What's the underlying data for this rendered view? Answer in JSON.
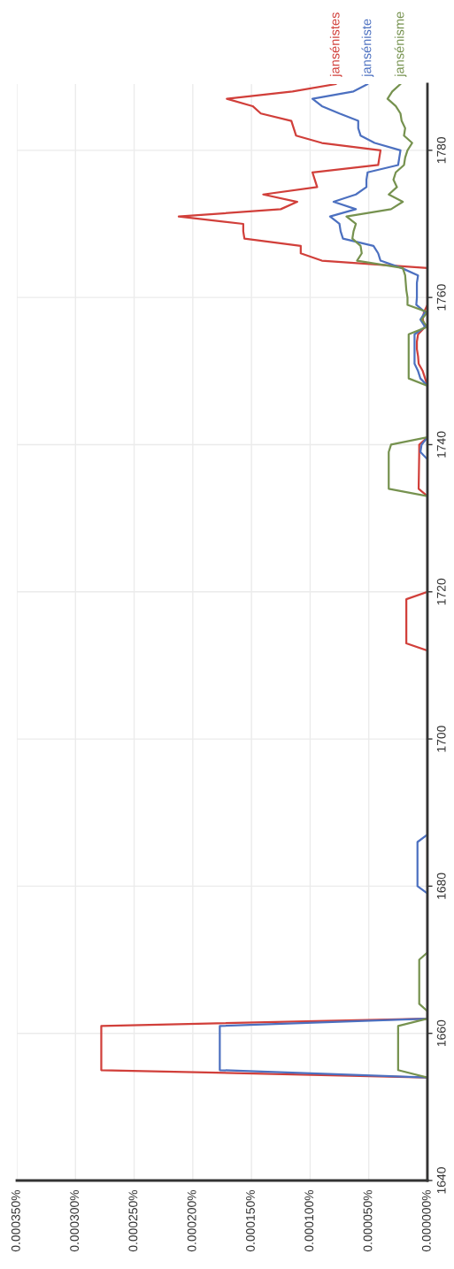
{
  "chart_data": {
    "type": "line",
    "ylim": [
      1640,
      1789
    ],
    "yticks": [
      1640,
      1660,
      1680,
      1700,
      1720,
      1740,
      1760,
      1780
    ],
    "xlim": [
      0.00035,
      0
    ],
    "xticks": [
      {
        "value": 0,
        "label": "0.000000%"
      },
      {
        "value": 5e-05,
        "label": "0.000050%"
      },
      {
        "value": 0.0001,
        "label": "0.000100%"
      },
      {
        "value": 0.00015,
        "label": "0.000150%"
      },
      {
        "value": 0.0002,
        "label": "0.000200%"
      },
      {
        "value": 0.00025,
        "label": "0.000250%"
      },
      {
        "value": 0.0003,
        "label": "0.000300%"
      },
      {
        "value": 0.00035,
        "label": "0.000350%"
      }
    ],
    "grid": true,
    "series": [
      {
        "name": "jansénistes",
        "color": "#d13f3a",
        "values": [
          1640,
          1654,
          1655,
          1661,
          1662,
          1712,
          1713,
          1719,
          1720,
          1733,
          1734,
          1739,
          1740,
          1741,
          1748,
          1749,
          1750,
          1751,
          1752,
          1753,
          1754,
          1755,
          1756,
          1757,
          1758,
          1759,
          1764,
          1765,
          1766,
          1767,
          1768,
          1769,
          1770,
          1771,
          1772,
          1773,
          1774,
          1775,
          1776,
          1777,
          1778,
          1779,
          1780,
          1781,
          1782,
          1783,
          1784,
          1785,
          1786,
          1787,
          1788,
          1789
        ],
        "x": [
          0,
          0,
          0.000278,
          0.000278,
          0,
          0,
          1.8e-05,
          1.8e-05,
          0,
          0,
          7.5e-06,
          7e-06,
          7e-06,
          0,
          0,
          2e-06,
          4e-06,
          7.5e-06,
          8e-06,
          9e-06,
          9e-06,
          8e-06,
          2e-06,
          4e-06,
          3e-06,
          0,
          0,
          9e-05,
          0.000108,
          0.000108,
          0.000156,
          0.000157,
          0.000157,
          0.000212,
          0.000125,
          0.000111,
          0.00014,
          9.4e-05,
          9.6e-05,
          9.8e-05,
          4.2e-05,
          4.1e-05,
          4e-05,
          9e-05,
          0.000112,
          0.000114,
          0.000116,
          0.000142,
          0.000149,
          0.000171,
          0.000115,
          7.8e-05
        ]
      },
      {
        "name": "janséniste",
        "color": "#4c70c0",
        "values": [
          1640,
          1654,
          1655,
          1661,
          1662,
          1679,
          1680,
          1686,
          1687,
          1738,
          1739,
          1740,
          1741,
          1748,
          1749,
          1750,
          1751,
          1752,
          1753,
          1754,
          1755,
          1756,
          1757,
          1758,
          1759,
          1760,
          1761,
          1762,
          1763,
          1764,
          1765,
          1766,
          1767,
          1768,
          1769,
          1770,
          1771,
          1772,
          1773,
          1774,
          1775,
          1776,
          1777,
          1778,
          1779,
          1780,
          1781,
          1782,
          1783,
          1784,
          1785,
          1786,
          1787,
          1788,
          1789
        ],
        "x": [
          0,
          0,
          0.000177,
          0.000177,
          0,
          0,
          8.5e-06,
          8.5e-06,
          0,
          0,
          6e-06,
          5e-06,
          0,
          0,
          6e-06,
          8e-06,
          1.1e-05,
          1.1e-05,
          1.1e-05,
          1.1e-05,
          1.1e-05,
          2e-06,
          6e-06,
          2e-06,
          9.5e-06,
          9e-06,
          9e-06,
          9e-06,
          8e-06,
          2.2e-05,
          4e-05,
          4.2e-05,
          4.6e-05,
          7.2e-05,
          7.4e-05,
          7.5e-05,
          8.3e-05,
          6.1e-05,
          8e-05,
          6.1e-05,
          5.2e-05,
          5.2e-05,
          5.1e-05,
          2.5e-05,
          2.4e-05,
          2.3e-05,
          4.5e-05,
          5.7e-05,
          5.9e-05,
          5.9e-05,
          7.5e-05,
          9e-05,
          9.8e-05,
          6.3e-05,
          5.1e-05
        ]
      },
      {
        "name": "jansénisme",
        "color": "#76924f",
        "values": [
          1640,
          1654,
          1655,
          1661,
          1662,
          1663,
          1664,
          1670,
          1671,
          1733,
          1734,
          1739,
          1740,
          1741,
          1748,
          1749,
          1755,
          1756,
          1757,
          1758,
          1759,
          1760,
          1761,
          1762,
          1763,
          1764,
          1765,
          1766,
          1767,
          1768,
          1769,
          1770,
          1771,
          1772,
          1773,
          1774,
          1775,
          1776,
          1777,
          1778,
          1779,
          1780,
          1781,
          1782,
          1783,
          1784,
          1785,
          1786,
          1787,
          1788,
          1789
        ],
        "x": [
          0,
          0,
          2.5e-05,
          2.5e-05,
          0,
          0,
          7e-06,
          7e-06,
          0,
          0,
          3.3e-05,
          3.3e-05,
          3.1e-05,
          0,
          0,
          1.6e-05,
          1.6e-05,
          0,
          5e-06,
          0,
          1.7e-05,
          1.7e-05,
          1.8e-05,
          1.85e-05,
          1.9e-05,
          2.1e-05,
          6e-05,
          5.6e-05,
          5.7e-05,
          6.4e-05,
          6.3e-05,
          6.1e-05,
          6.9e-05,
          3.1e-05,
          2.1e-05,
          3.3e-05,
          2.6e-05,
          2.9e-05,
          2.7e-05,
          2e-05,
          1.9e-05,
          1.7e-05,
          1.3e-05,
          2e-05,
          1.9e-05,
          2.2e-05,
          2.3e-05,
          2.7e-05,
          3.4e-05,
          3e-05,
          2.3e-05
        ]
      }
    ]
  }
}
